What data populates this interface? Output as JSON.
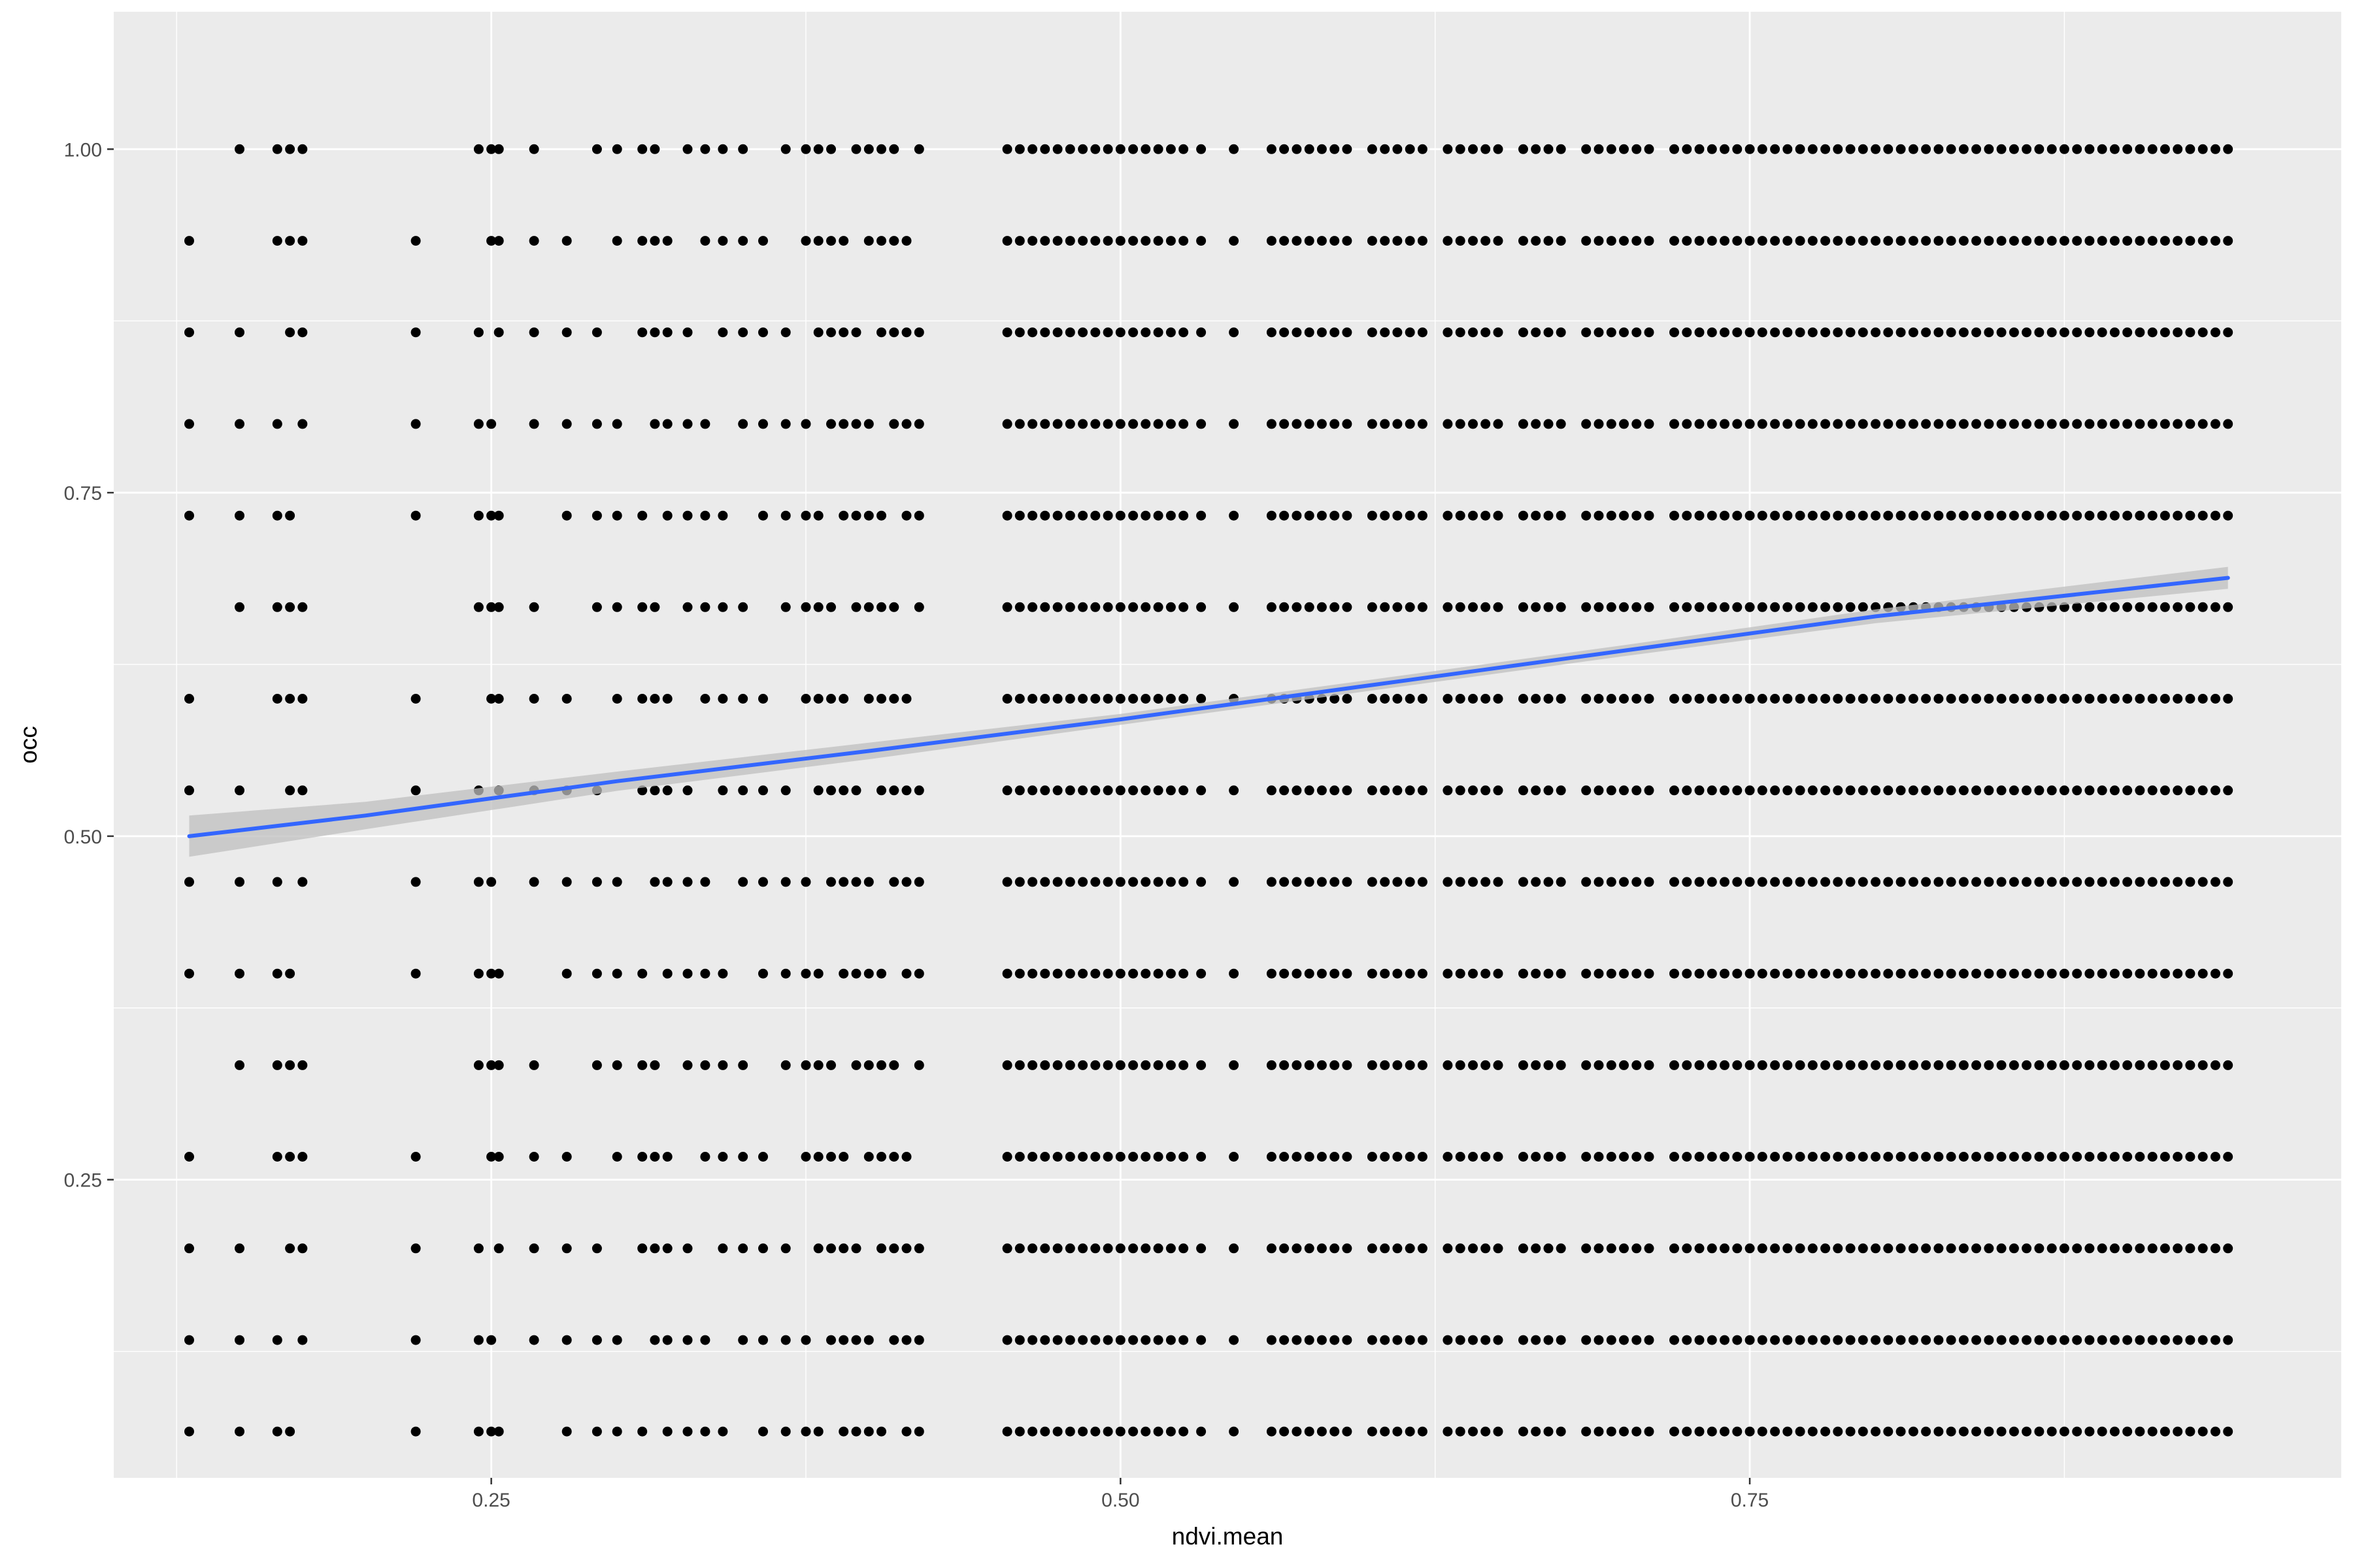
{
  "chart_data": {
    "type": "scatter",
    "title": "",
    "xlabel": "ndvi.mean",
    "ylabel": "occ",
    "xlim": [
      0.1,
      0.985
    ],
    "ylim": [
      0.033,
      1.1
    ],
    "x_ticks": [
      {
        "value": 0.25,
        "label": "0.25"
      },
      {
        "value": 0.5,
        "label": "0.50"
      },
      {
        "value": 0.75,
        "label": "0.75"
      }
    ],
    "y_ticks": [
      {
        "value": 0.25,
        "label": "0.25"
      },
      {
        "value": 0.5,
        "label": "0.50"
      },
      {
        "value": 0.75,
        "label": "0.75"
      },
      {
        "value": 1.0,
        "label": "1.00"
      }
    ],
    "grid": true,
    "legend": "none",
    "colors": {
      "panel": "#ebebeb",
      "grid": "#ffffff",
      "point": "#000000",
      "trend": "#3366ff",
      "ribbon": "#bfbfbf"
    },
    "points": {
      "description_levels_y": [
        1.0,
        0.9333,
        0.8667,
        0.8,
        0.7333,
        0.6667,
        0.6,
        0.5333,
        0.4667,
        0.4,
        0.3333,
        0.2667,
        0.2,
        0.1333,
        0.0667
      ],
      "x_values": [
        0.13,
        0.15,
        0.165,
        0.17,
        0.175,
        0.22,
        0.245,
        0.25,
        0.253,
        0.267,
        0.28,
        0.292,
        0.3,
        0.31,
        0.315,
        0.32,
        0.328,
        0.335,
        0.342,
        0.35,
        0.358,
        0.367,
        0.375,
        0.38,
        0.385,
        0.39,
        0.395,
        0.4,
        0.405,
        0.41,
        0.415,
        0.42,
        0.455,
        0.46,
        0.465,
        0.47,
        0.475,
        0.48,
        0.485,
        0.49,
        0.495,
        0.5,
        0.505,
        0.51,
        0.515,
        0.52,
        0.525,
        0.532,
        0.545,
        0.56,
        0.565,
        0.57,
        0.575,
        0.58,
        0.585,
        0.59,
        0.6,
        0.605,
        0.61,
        0.615,
        0.62,
        0.63,
        0.635,
        0.64,
        0.645,
        0.65,
        0.66,
        0.665,
        0.67,
        0.675,
        0.685,
        0.69,
        0.695,
        0.7,
        0.705,
        0.71,
        0.72,
        0.725,
        0.73,
        0.735,
        0.74,
        0.745,
        0.75,
        0.755,
        0.76,
        0.765,
        0.77,
        0.775,
        0.78,
        0.785,
        0.79,
        0.795,
        0.8,
        0.805,
        0.81,
        0.815,
        0.82,
        0.825,
        0.83,
        0.835,
        0.84,
        0.845,
        0.85,
        0.855,
        0.86,
        0.865,
        0.87,
        0.875,
        0.88,
        0.885,
        0.89,
        0.895,
        0.9,
        0.905,
        0.91,
        0.915,
        0.92,
        0.925,
        0.93,
        0.935,
        0.94
      ]
    },
    "series": [
      {
        "type": "smooth",
        "x": [
          0.13,
          0.2,
          0.3,
          0.4,
          0.5,
          0.6,
          0.7,
          0.8,
          0.94
        ],
        "y": [
          0.5,
          0.515,
          0.54,
          0.562,
          0.585,
          0.61,
          0.635,
          0.66,
          0.688
        ],
        "ci_low": [
          0.485,
          0.505,
          0.533,
          0.556,
          0.581,
          0.606,
          0.631,
          0.655,
          0.68
        ],
        "ci_high": [
          0.515,
          0.525,
          0.547,
          0.568,
          0.589,
          0.614,
          0.639,
          0.665,
          0.696
        ]
      }
    ]
  }
}
